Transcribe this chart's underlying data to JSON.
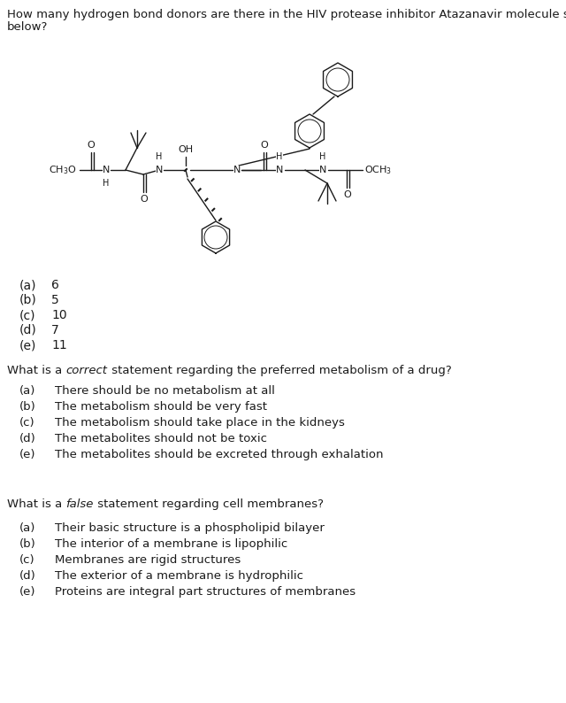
{
  "bg_color": "#ffffff",
  "text_color": "#1a1a1a",
  "q1_line1": "How many hydrogen bond donors are there in the HIV protease inhibitor Atazanavir molecule shown",
  "q1_line2": "below?",
  "q1_options": [
    [
      "(a)",
      "6"
    ],
    [
      "(b)",
      "5"
    ],
    [
      "(c)",
      "10"
    ],
    [
      "(d)",
      "7"
    ],
    [
      "(e)",
      "11"
    ]
  ],
  "q2_pre": "What is a ",
  "q2_italic": "correct",
  "q2_post": " statement regarding the preferred metabolism of a drug?",
  "q2_options": [
    [
      "(a)",
      "There should be no metabolism at all"
    ],
    [
      "(b)",
      "The metabolism should be very fast"
    ],
    [
      "(c)",
      "The metabolism should take place in the kidneys"
    ],
    [
      "(d)",
      "The metabolites should not be toxic"
    ],
    [
      "(e)",
      "The metabolites should be excreted through exhalation"
    ]
  ],
  "q3_pre": "What is a ",
  "q3_italic": "false",
  "q3_post": " statement regarding cell membranes?",
  "q3_options": [
    [
      "(a)",
      "Their basic structure is a phospholipid bilayer"
    ],
    [
      "(b)",
      "The interior of a membrane is lipophilic"
    ],
    [
      "(c)",
      "Membranes are rigid structures"
    ],
    [
      "(d)",
      "The exterior of a membrane is hydrophilic"
    ],
    [
      "(e)",
      "Proteins are integral part structures of membranes"
    ]
  ],
  "fig_width": 6.4,
  "fig_height": 7.94,
  "dpi": 100
}
